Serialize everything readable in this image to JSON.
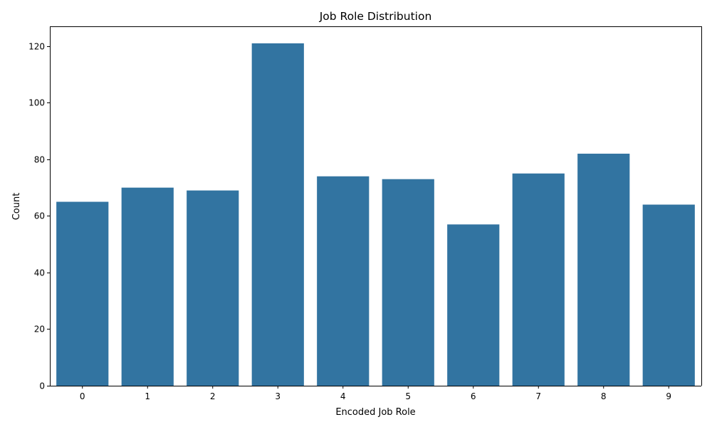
{
  "chart_data": {
    "type": "bar",
    "title": "Job Role Distribution",
    "xlabel": "Encoded Job Role",
    "ylabel": "Count",
    "categories": [
      "0",
      "1",
      "2",
      "3",
      "4",
      "5",
      "6",
      "7",
      "8",
      "9"
    ],
    "values": [
      65,
      70,
      69,
      121,
      74,
      73,
      57,
      75,
      82,
      64
    ],
    "ylim": [
      0,
      127
    ],
    "yticks": [
      0,
      20,
      40,
      60,
      80,
      100,
      120
    ],
    "grid": false,
    "bar_color": "#3274a1"
  }
}
